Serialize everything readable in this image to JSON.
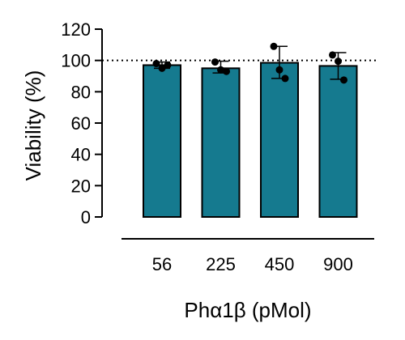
{
  "chart_data": {
    "type": "bar",
    "title": "",
    "xlabel": "Phα1β (pMol)",
    "ylabel": "Viability (%)",
    "ylim": [
      0,
      120
    ],
    "yticks": [
      0,
      20,
      40,
      60,
      80,
      100,
      120
    ],
    "reference_line": {
      "y": 100,
      "style": "dotted"
    },
    "categories": [
      "56",
      "225",
      "450",
      "900"
    ],
    "values": [
      97,
      95,
      98.5,
      96.5
    ],
    "error_high": [
      99,
      99.5,
      109,
      105
    ],
    "error_low": [
      95,
      92,
      88.5,
      88
    ],
    "points": [
      [
        98,
        95,
        97
      ],
      [
        99,
        94,
        93
      ],
      [
        109,
        94,
        88.5
      ],
      [
        103.5,
        99.5,
        87.5
      ]
    ],
    "colors": {
      "bar": "#157a8f",
      "stroke": "#000000",
      "point": "#000000"
    }
  }
}
